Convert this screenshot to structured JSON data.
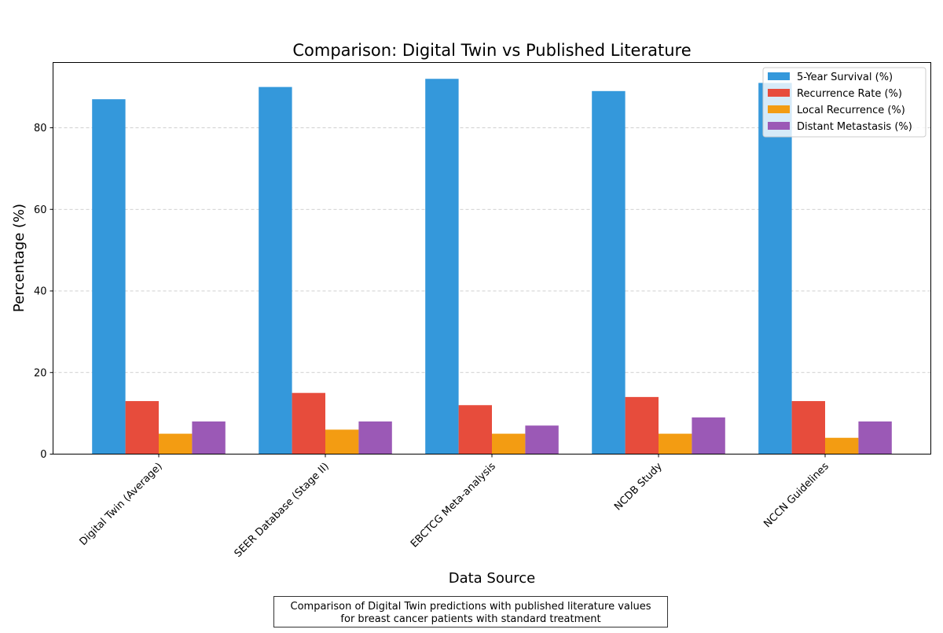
{
  "chart_data": {
    "type": "bar",
    "title": "Comparison: Digital Twin vs Published Literature",
    "xlabel": "Data Source",
    "ylabel": "Percentage (%)",
    "ylim": [
      0,
      96
    ],
    "yticks": [
      "0",
      "20",
      "40",
      "60",
      "80"
    ],
    "grid": "y-dashed",
    "legend_position": "top-right",
    "categories": [
      "Digital Twin (Average)",
      "SEER Database (Stage II)",
      "EBCTCG Meta-analysis",
      "NCDB Study",
      "NCCN Guidelines"
    ],
    "series": [
      {
        "name": "5-Year Survival (%)",
        "color": "#3498db",
        "values": [
          87,
          90,
          92,
          89,
          91
        ]
      },
      {
        "name": "Recurrence Rate (%)",
        "color": "#e74c3c",
        "values": [
          13,
          15,
          12,
          14,
          13
        ]
      },
      {
        "name": "Local Recurrence (%)",
        "color": "#f39c12",
        "values": [
          5,
          6,
          5,
          5,
          4
        ]
      },
      {
        "name": "Distant Metastasis (%)",
        "color": "#9b59b6",
        "values": [
          8,
          8,
          7,
          9,
          8
        ]
      }
    ]
  },
  "caption": {
    "line1": "Comparison of Digital Twin predictions with published literature values",
    "line2": "for breast cancer patients with standard treatment"
  }
}
